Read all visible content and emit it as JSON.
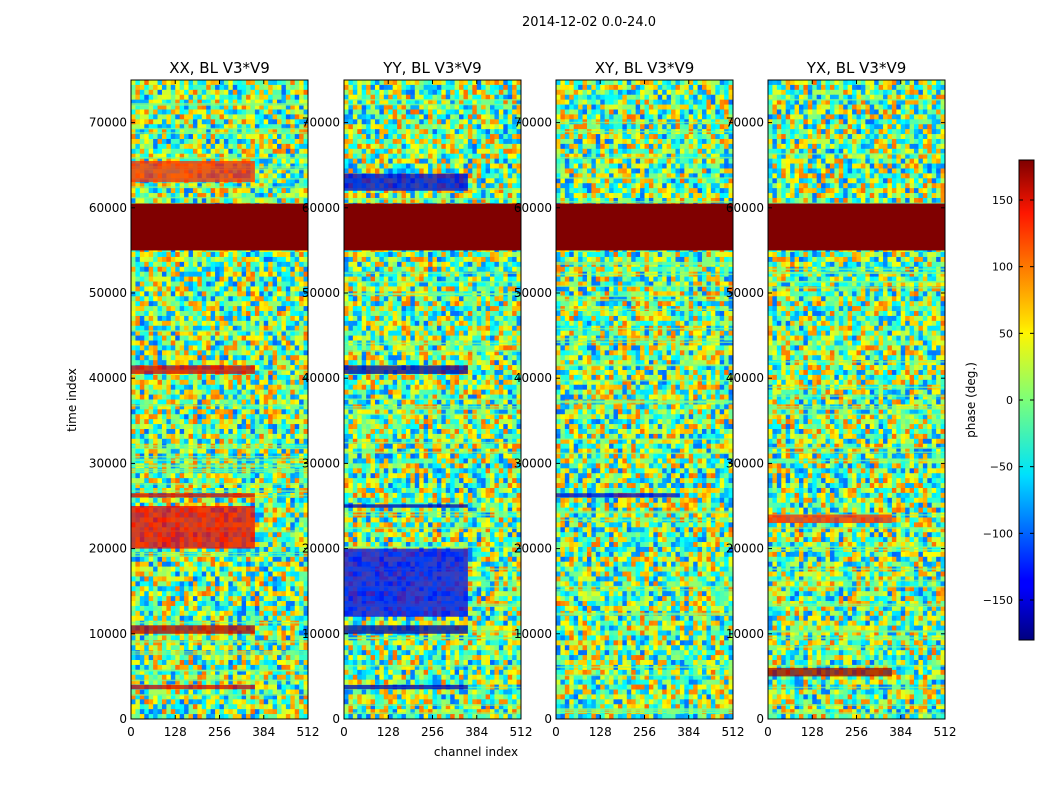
{
  "figure": {
    "suptitle": "2014-12-02 0.0-24.0",
    "xlabel": "channel index",
    "ylabel": "time index",
    "colorbar_label": "phase (deg.)"
  },
  "chart_data": {
    "type": "heatmap",
    "panels": [
      {
        "title": "XX, BL V3*V9",
        "bands": [
          {
            "t0": 0,
            "t1": 75000,
            "style": "noise",
            "value": 0
          },
          {
            "t0": 55000,
            "t1": 60500,
            "style": "solid",
            "value": 180
          },
          {
            "t0": 3500,
            "t1": 4000,
            "style": "band",
            "value": 150
          },
          {
            "t0": 10000,
            "t1": 11000,
            "style": "band",
            "value": 160
          },
          {
            "t0": 20000,
            "t1": 25000,
            "style": "band",
            "value": 140
          },
          {
            "t0": 40500,
            "t1": 41500,
            "style": "band",
            "value": 150
          },
          {
            "t0": 26000,
            "t1": 26500,
            "style": "band",
            "value": 150
          },
          {
            "t0": 63000,
            "t1": 65500,
            "style": "band",
            "value": 120
          }
        ]
      },
      {
        "title": "YY, BL V3*V9",
        "bands": [
          {
            "t0": 0,
            "t1": 75000,
            "style": "noise",
            "value": 0
          },
          {
            "t0": 55000,
            "t1": 60500,
            "style": "solid",
            "value": 180
          },
          {
            "t0": 3500,
            "t1": 4000,
            "style": "band",
            "value": -160
          },
          {
            "t0": 10000,
            "t1": 11000,
            "style": "band",
            "value": -165
          },
          {
            "t0": 12000,
            "t1": 20000,
            "style": "band",
            "value": -140
          },
          {
            "t0": 24800,
            "t1": 25200,
            "style": "band",
            "value": -160
          },
          {
            "t0": 40500,
            "t1": 41500,
            "style": "band",
            "value": -165
          },
          {
            "t0": 62000,
            "t1": 64000,
            "style": "band",
            "value": -150
          }
        ]
      },
      {
        "title": "XY, BL V3*V9",
        "bands": [
          {
            "t0": 0,
            "t1": 75000,
            "style": "noise",
            "value": 0
          },
          {
            "t0": 55000,
            "t1": 60500,
            "style": "solid",
            "value": 180
          },
          {
            "t0": 26000,
            "t1": 26500,
            "style": "band",
            "value": -150
          }
        ]
      },
      {
        "title": "YX, BL V3*V9",
        "bands": [
          {
            "t0": 0,
            "t1": 75000,
            "style": "noise",
            "value": 0
          },
          {
            "t0": 55000,
            "t1": 60500,
            "style": "solid",
            "value": 180
          },
          {
            "t0": 23000,
            "t1": 24000,
            "style": "band",
            "value": 120
          },
          {
            "t0": 5000,
            "t1": 6000,
            "style": "band",
            "value": 170
          }
        ]
      }
    ],
    "xlim": [
      0,
      512
    ],
    "xticks": [
      0,
      128,
      256,
      384,
      512
    ],
    "ylim": [
      0,
      75000
    ],
    "yticks": [
      0,
      10000,
      20000,
      30000,
      40000,
      50000,
      60000,
      70000
    ],
    "colorbar": {
      "colormap": "jet",
      "range": [
        -180,
        180
      ],
      "ticks": [
        -150,
        -100,
        -50,
        0,
        50,
        100,
        150
      ]
    },
    "grid": false
  }
}
